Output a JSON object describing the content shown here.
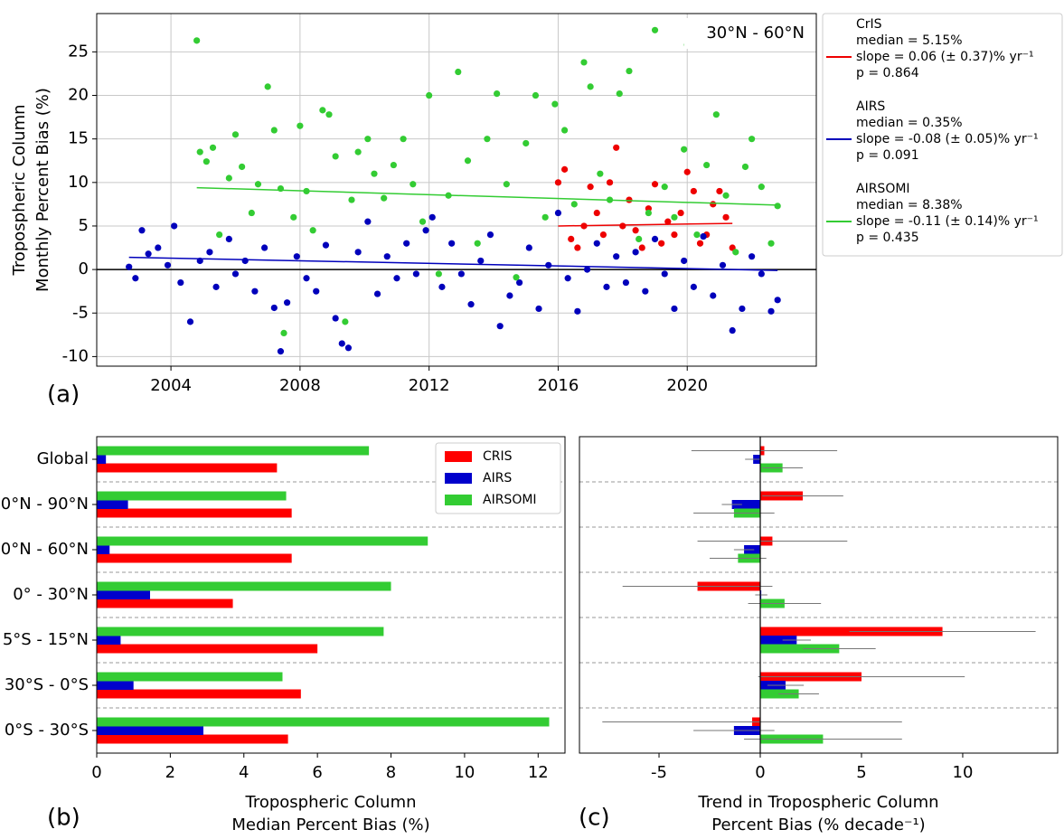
{
  "chart_data": [
    {
      "type": "scatter",
      "panel_label": "(a)",
      "annotation": "30°N - 60°N",
      "y_label": [
        "Tropospheric Column",
        "Monthly Percent Bias (%)"
      ],
      "xlim": [
        2001.7,
        2024.0
      ],
      "ylim": [
        -11.1,
        29.4
      ],
      "xticks": [
        2004,
        2008,
        2012,
        2016,
        2020
      ],
      "yticks": [
        -10,
        -5,
        0,
        5,
        10,
        15,
        20,
        25
      ],
      "grid": true,
      "legend": "outside right",
      "series": [
        {
          "name": "CrIS",
          "details": [
            "median = 5.15%",
            "slope = 0.06 (± 0.37)% yr⁻¹",
            "p = 0.864"
          ],
          "color": "#ee0000",
          "x": [
            2016.0,
            2016.2,
            2016.4,
            2016.6,
            2016.8,
            2017.0,
            2017.2,
            2017.4,
            2017.6,
            2017.8,
            2018.0,
            2018.2,
            2018.4,
            2018.6,
            2018.8,
            2019.0,
            2019.2,
            2019.4,
            2019.6,
            2019.8,
            2020.0,
            2020.2,
            2020.4,
            2020.6,
            2020.8,
            2021.0,
            2021.2,
            2021.4
          ],
          "y": [
            10,
            11.5,
            3.5,
            2.5,
            5,
            9.5,
            6.5,
            4,
            10,
            14,
            5,
            8,
            4.5,
            2.5,
            7,
            9.8,
            3,
            5.5,
            4,
            6.5,
            11.2,
            9,
            3,
            4,
            7.5,
            9,
            6,
            2.5
          ],
          "trend": {
            "x": [
              2016.0,
              2021.4
            ],
            "y": [
              5.0,
              5.3
            ]
          }
        },
        {
          "name": "AIRS",
          "details": [
            "median = 0.35%",
            "slope = -0.08 (± 0.05)% yr⁻¹",
            "p = 0.091"
          ],
          "color": "#0000bb",
          "x": [
            2002.7,
            2002.9,
            2003.1,
            2003.3,
            2003.6,
            2003.9,
            2004.1,
            2004.3,
            2004.6,
            2004.9,
            2005.2,
            2005.4,
            2005.8,
            2006.0,
            2006.3,
            2006.6,
            2006.9,
            2007.2,
            2007.4,
            2007.6,
            2007.9,
            2008.2,
            2008.5,
            2008.8,
            2009.1,
            2009.3,
            2009.5,
            2009.8,
            2010.1,
            2010.4,
            2010.7,
            2011.0,
            2011.3,
            2011.6,
            2011.9,
            2012.1,
            2012.4,
            2012.7,
            2013.0,
            2013.3,
            2013.6,
            2013.9,
            2014.2,
            2014.5,
            2014.8,
            2015.1,
            2015.4,
            2015.7,
            2016.0,
            2016.3,
            2016.6,
            2016.9,
            2017.2,
            2017.5,
            2017.8,
            2018.1,
            2018.4,
            2018.7,
            2019.0,
            2019.3,
            2019.6,
            2019.9,
            2020.2,
            2020.5,
            2020.8,
            2021.1,
            2021.4,
            2021.7,
            2022.0,
            2022.3,
            2022.6,
            2022.8
          ],
          "y": [
            0.3,
            -1,
            4.5,
            1.8,
            2.5,
            0.5,
            5,
            -1.5,
            -6,
            1,
            2,
            -2,
            3.5,
            -0.5,
            1,
            -2.5,
            2.5,
            -4.4,
            -9.4,
            -3.8,
            1.5,
            -1,
            -2.5,
            2.8,
            -5.6,
            -8.5,
            -9,
            2,
            5.5,
            -2.8,
            1.5,
            -1,
            3,
            -0.5,
            4.5,
            6,
            -2,
            3,
            -0.5,
            -4,
            1,
            4,
            -6.5,
            -3,
            -1.5,
            2.5,
            -4.5,
            0.5,
            6.5,
            -1,
            -4.8,
            0,
            3,
            -2,
            1.5,
            -1.5,
            2,
            -2.5,
            3.5,
            -0.5,
            -4.5,
            1,
            -2,
            3.8,
            -3,
            0.5,
            -7,
            -4.5,
            1.5,
            -0.5,
            -4.8,
            -3.5
          ],
          "trend": {
            "x": [
              2002.7,
              2022.8
            ],
            "y": [
              1.4,
              -0.1
            ]
          }
        },
        {
          "name": "AIRSOMI",
          "details": [
            "median = 8.38%",
            "slope = -0.11 (± 0.14)% yr⁻¹",
            "p = 0.435"
          ],
          "color": "#33cc33",
          "x": [
            2004.8,
            2004.9,
            2005.1,
            2005.3,
            2005.5,
            2005.8,
            2006.0,
            2006.2,
            2006.5,
            2006.7,
            2007.0,
            2007.2,
            2007.4,
            2007.5,
            2007.8,
            2008.0,
            2008.2,
            2008.4,
            2008.7,
            2008.9,
            2009.1,
            2009.4,
            2009.6,
            2009.8,
            2010.1,
            2010.3,
            2010.6,
            2010.9,
            2011.2,
            2011.5,
            2011.8,
            2012.0,
            2012.3,
            2012.6,
            2012.9,
            2013.2,
            2013.5,
            2013.8,
            2014.1,
            2014.4,
            2014.7,
            2015.0,
            2015.3,
            2015.6,
            2015.9,
            2016.2,
            2016.5,
            2016.8,
            2017.0,
            2017.3,
            2017.6,
            2017.9,
            2018.2,
            2018.5,
            2018.8,
            2019.0,
            2019.3,
            2019.6,
            2019.9,
            2020.0,
            2020.3,
            2020.6,
            2020.9,
            2021.2,
            2021.5,
            2021.8,
            2022.0,
            2022.3,
            2022.6,
            2022.8
          ],
          "y": [
            26.3,
            13.5,
            12.4,
            14,
            4,
            10.5,
            15.5,
            11.8,
            6.5,
            9.8,
            21,
            16,
            9.3,
            -7.3,
            6,
            16.5,
            9,
            4.5,
            18.3,
            17.8,
            13,
            -6,
            8,
            13.5,
            15,
            11,
            8.2,
            12,
            15,
            9.8,
            5.5,
            20,
            -0.5,
            8.5,
            22.7,
            12.5,
            3,
            15,
            20.2,
            9.8,
            -0.9,
            14.5,
            20,
            6,
            19,
            16,
            7.5,
            23.8,
            21,
            11,
            8,
            20.2,
            22.8,
            3.5,
            6.5,
            27.5,
            9.5,
            6,
            13.8,
            25.8,
            4,
            12,
            17.8,
            8.5,
            2,
            11.8,
            15,
            9.5,
            3,
            7.3
          ],
          "trend": {
            "x": [
              2004.8,
              2022.8
            ],
            "y": [
              9.4,
              7.4
            ]
          }
        }
      ]
    },
    {
      "type": "barh",
      "panel_label": "(b)",
      "categories": [
        "Global",
        "0°N - 90°N",
        "0°N - 60°N",
        "0° - 30°N",
        "5°S - 15°N",
        "30°S - 0°S",
        "0°S - 30°S"
      ],
      "x_label": [
        "Tropospheric Column",
        "Median Percent Bias (%)"
      ],
      "xlim": [
        0,
        12.73
      ],
      "xticks": [
        0,
        2,
        4,
        6,
        8,
        10,
        12
      ],
      "legend": "upper right",
      "series": [
        {
          "name": "CRIS",
          "color": "#ff0000",
          "values": [
            4.9,
            5.3,
            5.3,
            3.7,
            6.0,
            5.55,
            5.2
          ]
        },
        {
          "name": "AIRS",
          "color": "#0000cc",
          "values": [
            0.25,
            0.85,
            0.35,
            1.45,
            0.65,
            1.0,
            2.9
          ]
        },
        {
          "name": "AIRSOMI",
          "color": "#33cc33",
          "values": [
            7.4,
            5.15,
            9.0,
            8.0,
            7.8,
            5.05,
            12.3
          ]
        }
      ]
    },
    {
      "type": "barh_error",
      "panel_label": "(c)",
      "x_label": [
        "Trend in Tropospheric Column",
        "Percent Bias (% decade⁻¹)"
      ],
      "xlim": [
        -8.93,
        14.69
      ],
      "xticks": [
        -5,
        0,
        5,
        10
      ],
      "series": [
        {
          "color": "#ff0000",
          "values": [
            0.2,
            2.1,
            0.6,
            -3.1,
            9.0,
            5.0,
            -0.4
          ],
          "errors": [
            3.6,
            2.0,
            3.7,
            3.7,
            4.6,
            5.1,
            7.4
          ]
        },
        {
          "color": "#0000cc",
          "values": [
            -0.35,
            -1.4,
            -0.8,
            0.05,
            1.8,
            1.25,
            -1.3
          ],
          "errors": [
            0.4,
            0.5,
            0.5,
            0.3,
            0.7,
            0.9,
            2.0
          ]
        },
        {
          "color": "#33cc33",
          "values": [
            1.1,
            -1.3,
            -1.1,
            1.2,
            3.9,
            1.9,
            3.1
          ],
          "errors": [
            1.0,
            2.0,
            1.4,
            1.8,
            1.8,
            1.0,
            3.9
          ]
        }
      ]
    }
  ]
}
